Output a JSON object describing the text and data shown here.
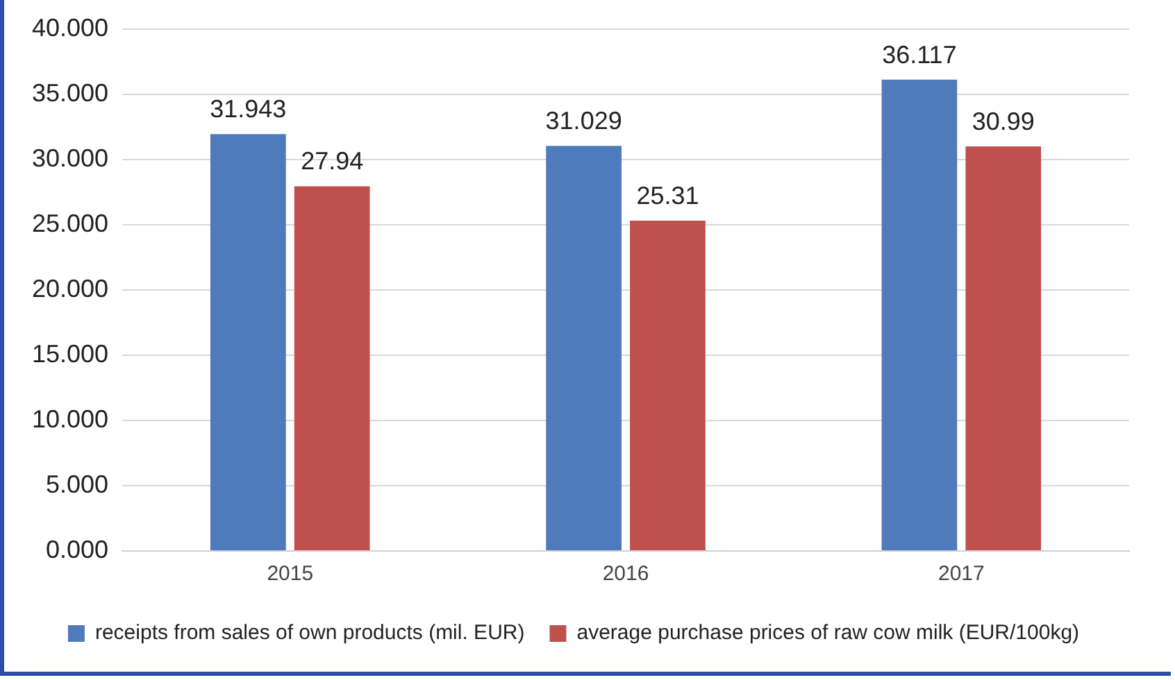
{
  "chart_data": {
    "type": "bar",
    "categories": [
      "2015",
      "2016",
      "2017"
    ],
    "series": [
      {
        "name": "receipts from sales of own products (mil. EUR)",
        "color": "#4f7bbd",
        "values": [
          31.943,
          31.029,
          36.117
        ]
      },
      {
        "name": "average purchase prices of raw cow milk (EUR/100kg)",
        "color": "#c0504d",
        "values": [
          27.94,
          25.31,
          30.99
        ]
      }
    ],
    "ylim": [
      0,
      40
    ],
    "yticks": [
      {
        "value": 0,
        "label": "0.000"
      },
      {
        "value": 5,
        "label": "5.000"
      },
      {
        "value": 10,
        "label": "10.000"
      },
      {
        "value": 15,
        "label": "15.000"
      },
      {
        "value": 20,
        "label": "20.000"
      },
      {
        "value": 25,
        "label": "25.000"
      },
      {
        "value": 30,
        "label": "30.000"
      },
      {
        "value": 35,
        "label": "35.000"
      },
      {
        "value": 40,
        "label": "40.000"
      }
    ],
    "grid": "y",
    "legend": "bottom",
    "data_labels": true
  }
}
